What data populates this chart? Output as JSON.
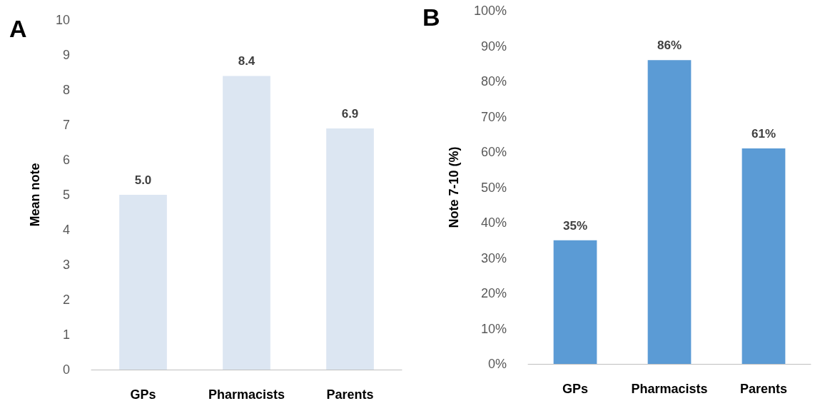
{
  "chart_data": [
    {
      "type": "bar",
      "title": "A",
      "ylabel": "Mean note",
      "categories": [
        "GPs",
        "Pharmacists",
        "Parents"
      ],
      "series": [
        {
          "color": "#dce6f2",
          "values": [
            5.0,
            8.4,
            6.9
          ],
          "value_labels": [
            "5.0",
            "8.4",
            "6.9"
          ]
        }
      ],
      "ylim": [
        0,
        10
      ],
      "yticks": [
        0,
        1,
        2,
        3,
        4,
        5,
        6,
        7,
        8,
        9,
        10
      ]
    },
    {
      "type": "bar",
      "title": "B",
      "ylabel": "Note 7-10 (%)",
      "categories": [
        "GPs",
        "Pharmacists",
        "Parents"
      ],
      "series": [
        {
          "color": "#5b9bd5",
          "values": [
            35,
            86,
            61
          ],
          "value_labels": [
            "35%",
            "86%",
            "61%"
          ]
        }
      ],
      "ylim": [
        0,
        100
      ],
      "yticks": [
        {
          "value": 0,
          "label": "0%"
        },
        {
          "value": 10,
          "label": "10%"
        },
        {
          "value": 20,
          "label": "20%"
        },
        {
          "value": 30,
          "label": "30%"
        },
        {
          "value": 40,
          "label": "40%"
        },
        {
          "value": 50,
          "label": "50%"
        },
        {
          "value": 60,
          "label": "60%"
        },
        {
          "value": 70,
          "label": "70%"
        },
        {
          "value": 80,
          "label": "80%"
        },
        {
          "value": 90,
          "label": "90%"
        },
        {
          "value": 100,
          "label": "100%"
        }
      ]
    }
  ]
}
